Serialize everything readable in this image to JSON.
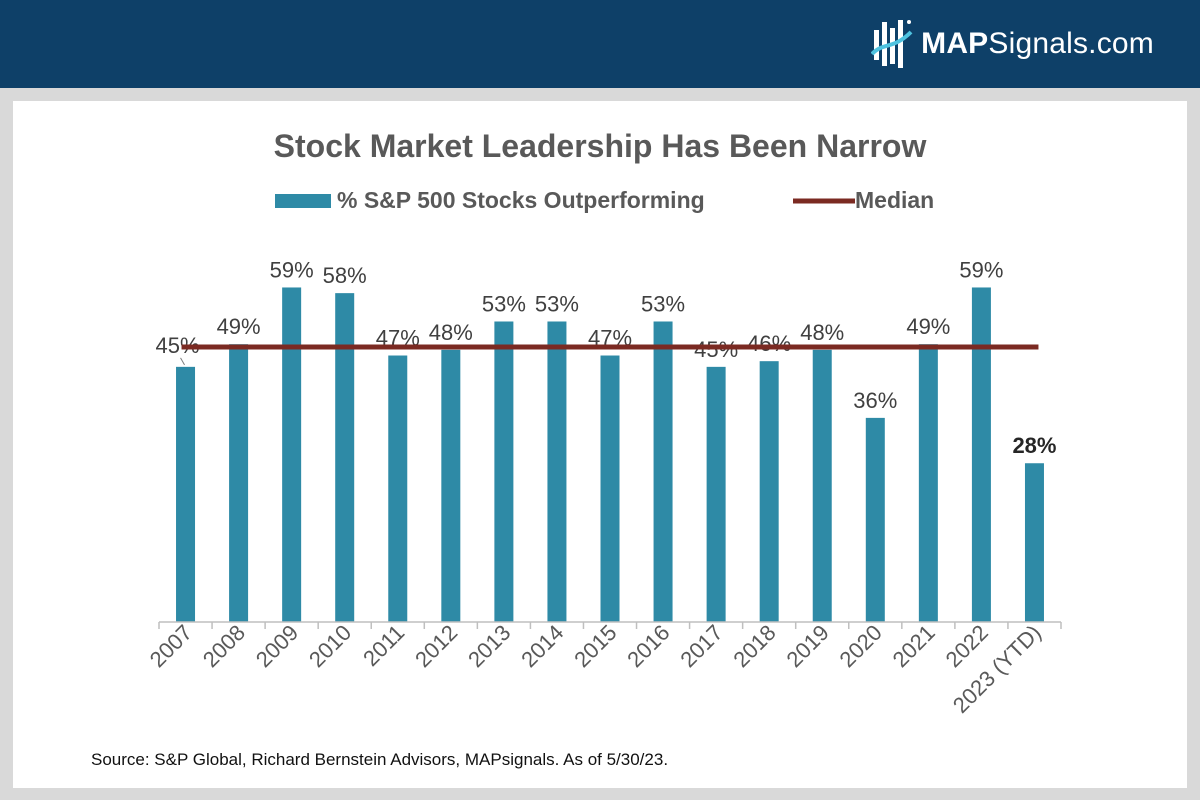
{
  "brand": {
    "name_bold": "MAP",
    "name_rest": "Signals.com",
    "bar_color": "#0e4068"
  },
  "source_note": "Source: S&P Global, Richard Bernstein Advisors, MAPsignals. As of 5/30/23.",
  "chart_data": {
    "type": "bar",
    "title": "Stock Market Leadership Has Been Narrow",
    "legend": [
      "% S&P 500 Stocks Outperforming",
      "Median"
    ],
    "categories": [
      "2007",
      "2008",
      "2009",
      "2010",
      "2011",
      "2012",
      "2013",
      "2014",
      "2015",
      "2016",
      "2017",
      "2018",
      "2019",
      "2020",
      "2021",
      "2022",
      "2023 (YTD)"
    ],
    "values": [
      45,
      49,
      59,
      58,
      47,
      48,
      53,
      53,
      47,
      53,
      45,
      46,
      48,
      36,
      49,
      59,
      28
    ],
    "labels": [
      "45%",
      "49%",
      "59%",
      "58%",
      "47%",
      "48%",
      "53%",
      "53%",
      "47%",
      "53%",
      "45%",
      "46%",
      "48%",
      "36%",
      "49%",
      "59%",
      "28%"
    ],
    "median": 48.5,
    "ylim": [
      0,
      62
    ],
    "bar_color": "#2e8aa6",
    "median_color": "#7b2a22",
    "legend_position": "top"
  }
}
